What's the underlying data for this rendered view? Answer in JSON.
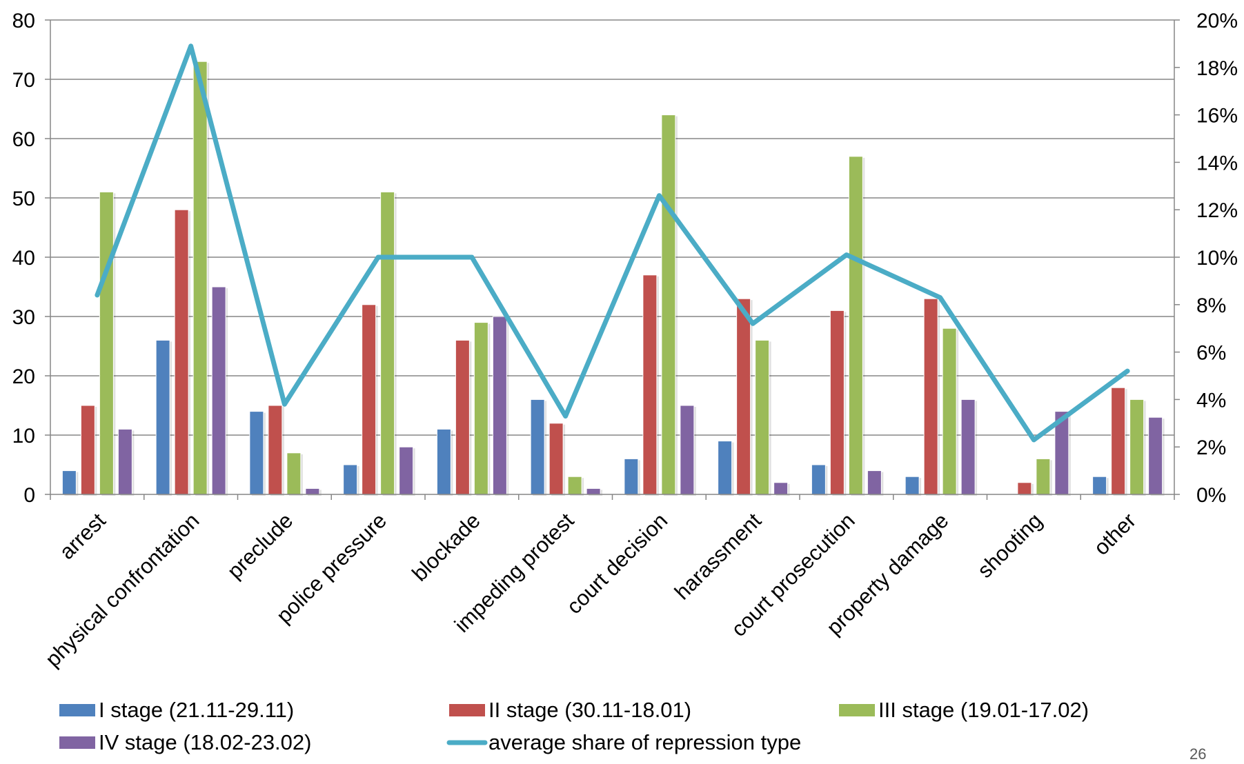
{
  "chart_data": {
    "type": "bar",
    "categories": [
      "arrest",
      "physical confrontation",
      "preclude",
      "police pressure",
      "blockade",
      "impeding protest",
      "court decision",
      "harassment",
      "court prosecution",
      "property damage",
      "shooting",
      "other"
    ],
    "series": [
      {
        "name": "I stage (21.11-29.11)",
        "type": "bar",
        "axis": "left",
        "color": "#4f81bd",
        "values": [
          4,
          26,
          14,
          5,
          11,
          16,
          6,
          9,
          5,
          3,
          0,
          3
        ]
      },
      {
        "name": "II stage (30.11-18.01)",
        "type": "bar",
        "axis": "left",
        "color": "#c0504d",
        "values": [
          15,
          48,
          15,
          32,
          26,
          12,
          37,
          33,
          31,
          33,
          2,
          18
        ]
      },
      {
        "name": "III stage (19.01-17.02)",
        "type": "bar",
        "axis": "left",
        "color": "#9bbb59",
        "values": [
          51,
          73,
          7,
          51,
          29,
          3,
          64,
          26,
          57,
          28,
          6,
          16
        ]
      },
      {
        "name": "IV stage (18.02-23.02)",
        "type": "bar",
        "axis": "left",
        "color": "#8064a2",
        "values": [
          11,
          35,
          1,
          8,
          30,
          1,
          15,
          2,
          4,
          16,
          14,
          13
        ]
      },
      {
        "name": "average share of repression type",
        "type": "line",
        "axis": "right",
        "color": "#4bacc6",
        "values": [
          8.4,
          18.9,
          3.8,
          10.0,
          10.0,
          3.3,
          12.6,
          7.2,
          10.1,
          8.3,
          2.3,
          5.2
        ]
      }
    ],
    "y_left": {
      "min": 0,
      "max": 80,
      "ticks": [
        "0",
        "10",
        "20",
        "30",
        "40",
        "50",
        "60",
        "70",
        "80"
      ]
    },
    "y_right": {
      "min": 0,
      "max": 20,
      "ticks": [
        "0%",
        "2%",
        "4%",
        "6%",
        "8%",
        "10%",
        "12%",
        "14%",
        "16%",
        "18%",
        "20%"
      ]
    },
    "grid": true,
    "legend_position": "bottom"
  },
  "page_number": "26"
}
